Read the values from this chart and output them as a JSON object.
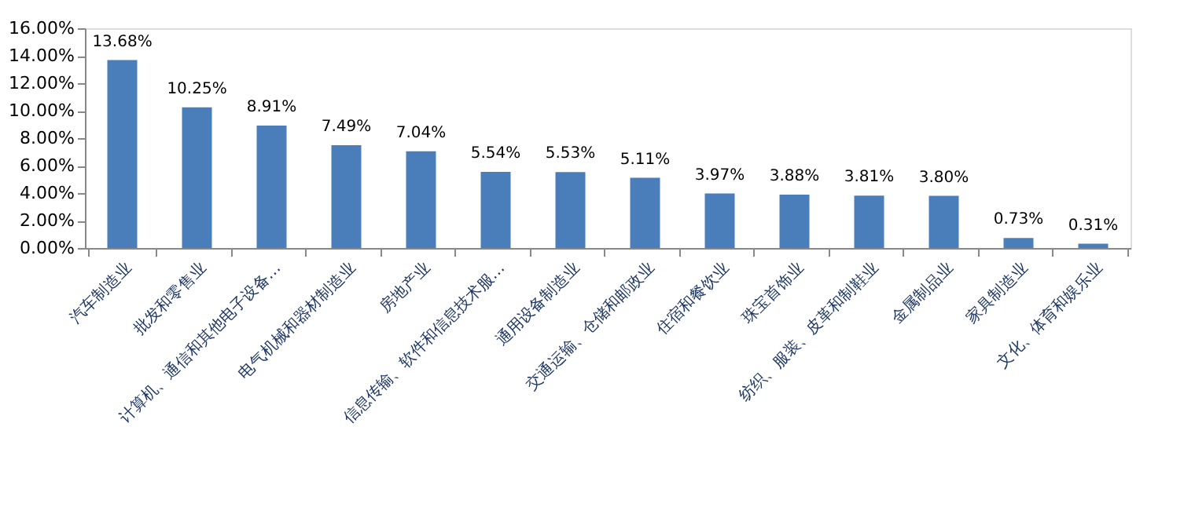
{
  "chart_data": {
    "type": "bar",
    "categories": [
      "汽车制造业",
      "批发和零售业",
      "计算机、通信和其他电子设备…",
      "电气机械和器材制造业",
      "房地产业",
      "信息传输、软件和信息技术服…",
      "通用设备制造业",
      "交通运输、仓储和邮政业",
      "住宿和餐饮业",
      "珠宝首饰业",
      "纺织、服装、皮革和制鞋业",
      "金属制品业",
      "家具制造业",
      "文化、体育和娱乐业"
    ],
    "values": [
      13.68,
      10.25,
      8.91,
      7.49,
      7.04,
      5.54,
      5.53,
      5.11,
      3.97,
      3.88,
      3.81,
      3.8,
      0.73,
      0.31
    ],
    "value_labels": [
      "13.68%",
      "10.25%",
      "8.91%",
      "7.49%",
      "7.04%",
      "5.54%",
      "5.53%",
      "5.11%",
      "3.97%",
      "3.88%",
      "3.81%",
      "3.80%",
      "0.73%",
      "0.31%"
    ],
    "color": "#4a7ebb",
    "ylim": [
      0,
      16
    ],
    "yticks": [
      {
        "value": 0,
        "label": "0.00%"
      },
      {
        "value": 2,
        "label": "2.00%"
      },
      {
        "value": 4,
        "label": "4.00%"
      },
      {
        "value": 6,
        "label": "6.00%"
      },
      {
        "value": 8,
        "label": "8.00%"
      },
      {
        "value": 10,
        "label": "10.00%"
      },
      {
        "value": 12,
        "label": "12.00%"
      },
      {
        "value": 14,
        "label": "14.00%"
      },
      {
        "value": 16,
        "label": "16.00%"
      }
    ],
    "grid": false
  }
}
